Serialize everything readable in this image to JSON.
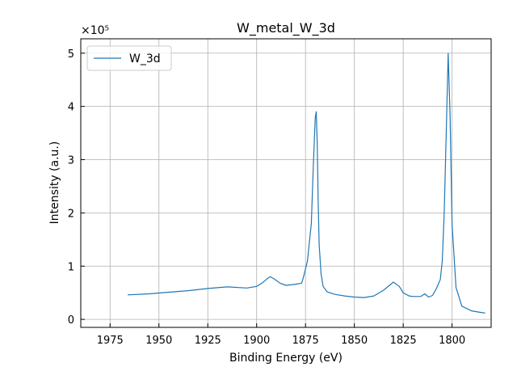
{
  "chart_data": {
    "type": "line",
    "title": "W_metal_W_3d",
    "xlabel": "Binding Energy (eV)",
    "ylabel": "Intensity (a.u.)",
    "y_multiplier_label": "×10⁵",
    "y_scale": 100000,
    "x_reversed": true,
    "xlim": [
      1990,
      1780
    ],
    "ylim": [
      -15000,
      527000
    ],
    "xticks": [
      1975,
      1950,
      1925,
      1900,
      1875,
      1850,
      1825,
      1800
    ],
    "yticks": [
      0,
      1,
      2,
      3,
      4,
      5
    ],
    "grid": true,
    "legend": {
      "position": "top-left",
      "entries": [
        "W_3d"
      ]
    },
    "colors": {
      "series": "#1f77b4",
      "grid": "#b0b0b0"
    },
    "series": [
      {
        "name": "W_3d",
        "x": [
          1966,
          1955,
          1945,
          1935,
          1925,
          1915,
          1905,
          1900,
          1897,
          1894,
          1893,
          1891,
          1888,
          1885,
          1880,
          1877,
          1876,
          1874,
          1872,
          1871,
          1870,
          1869.5,
          1869,
          1868.5,
          1868,
          1867,
          1866,
          1864,
          1860,
          1855,
          1850,
          1845,
          1840,
          1835,
          1830,
          1827,
          1825,
          1822,
          1820,
          1816,
          1814,
          1812,
          1810,
          1808,
          1806,
          1805,
          1804,
          1803,
          1802,
          1801,
          1800,
          1798,
          1795,
          1790,
          1785,
          1783
        ],
        "y": [
          46000,
          48000,
          51000,
          54000,
          58000,
          61000,
          59000,
          62000,
          69000,
          78000,
          80000,
          76000,
          68000,
          64000,
          66000,
          68000,
          80000,
          110000,
          180000,
          290000,
          380000,
          390000,
          330000,
          220000,
          140000,
          85000,
          62000,
          52000,
          47000,
          44000,
          42000,
          41000,
          44000,
          55000,
          70000,
          62000,
          50000,
          44000,
          43000,
          43000,
          48000,
          42000,
          45000,
          58000,
          75000,
          110000,
          200000,
          350000,
          500000,
          380000,
          180000,
          60000,
          25000,
          16000,
          13000,
          12000
        ]
      }
    ]
  }
}
